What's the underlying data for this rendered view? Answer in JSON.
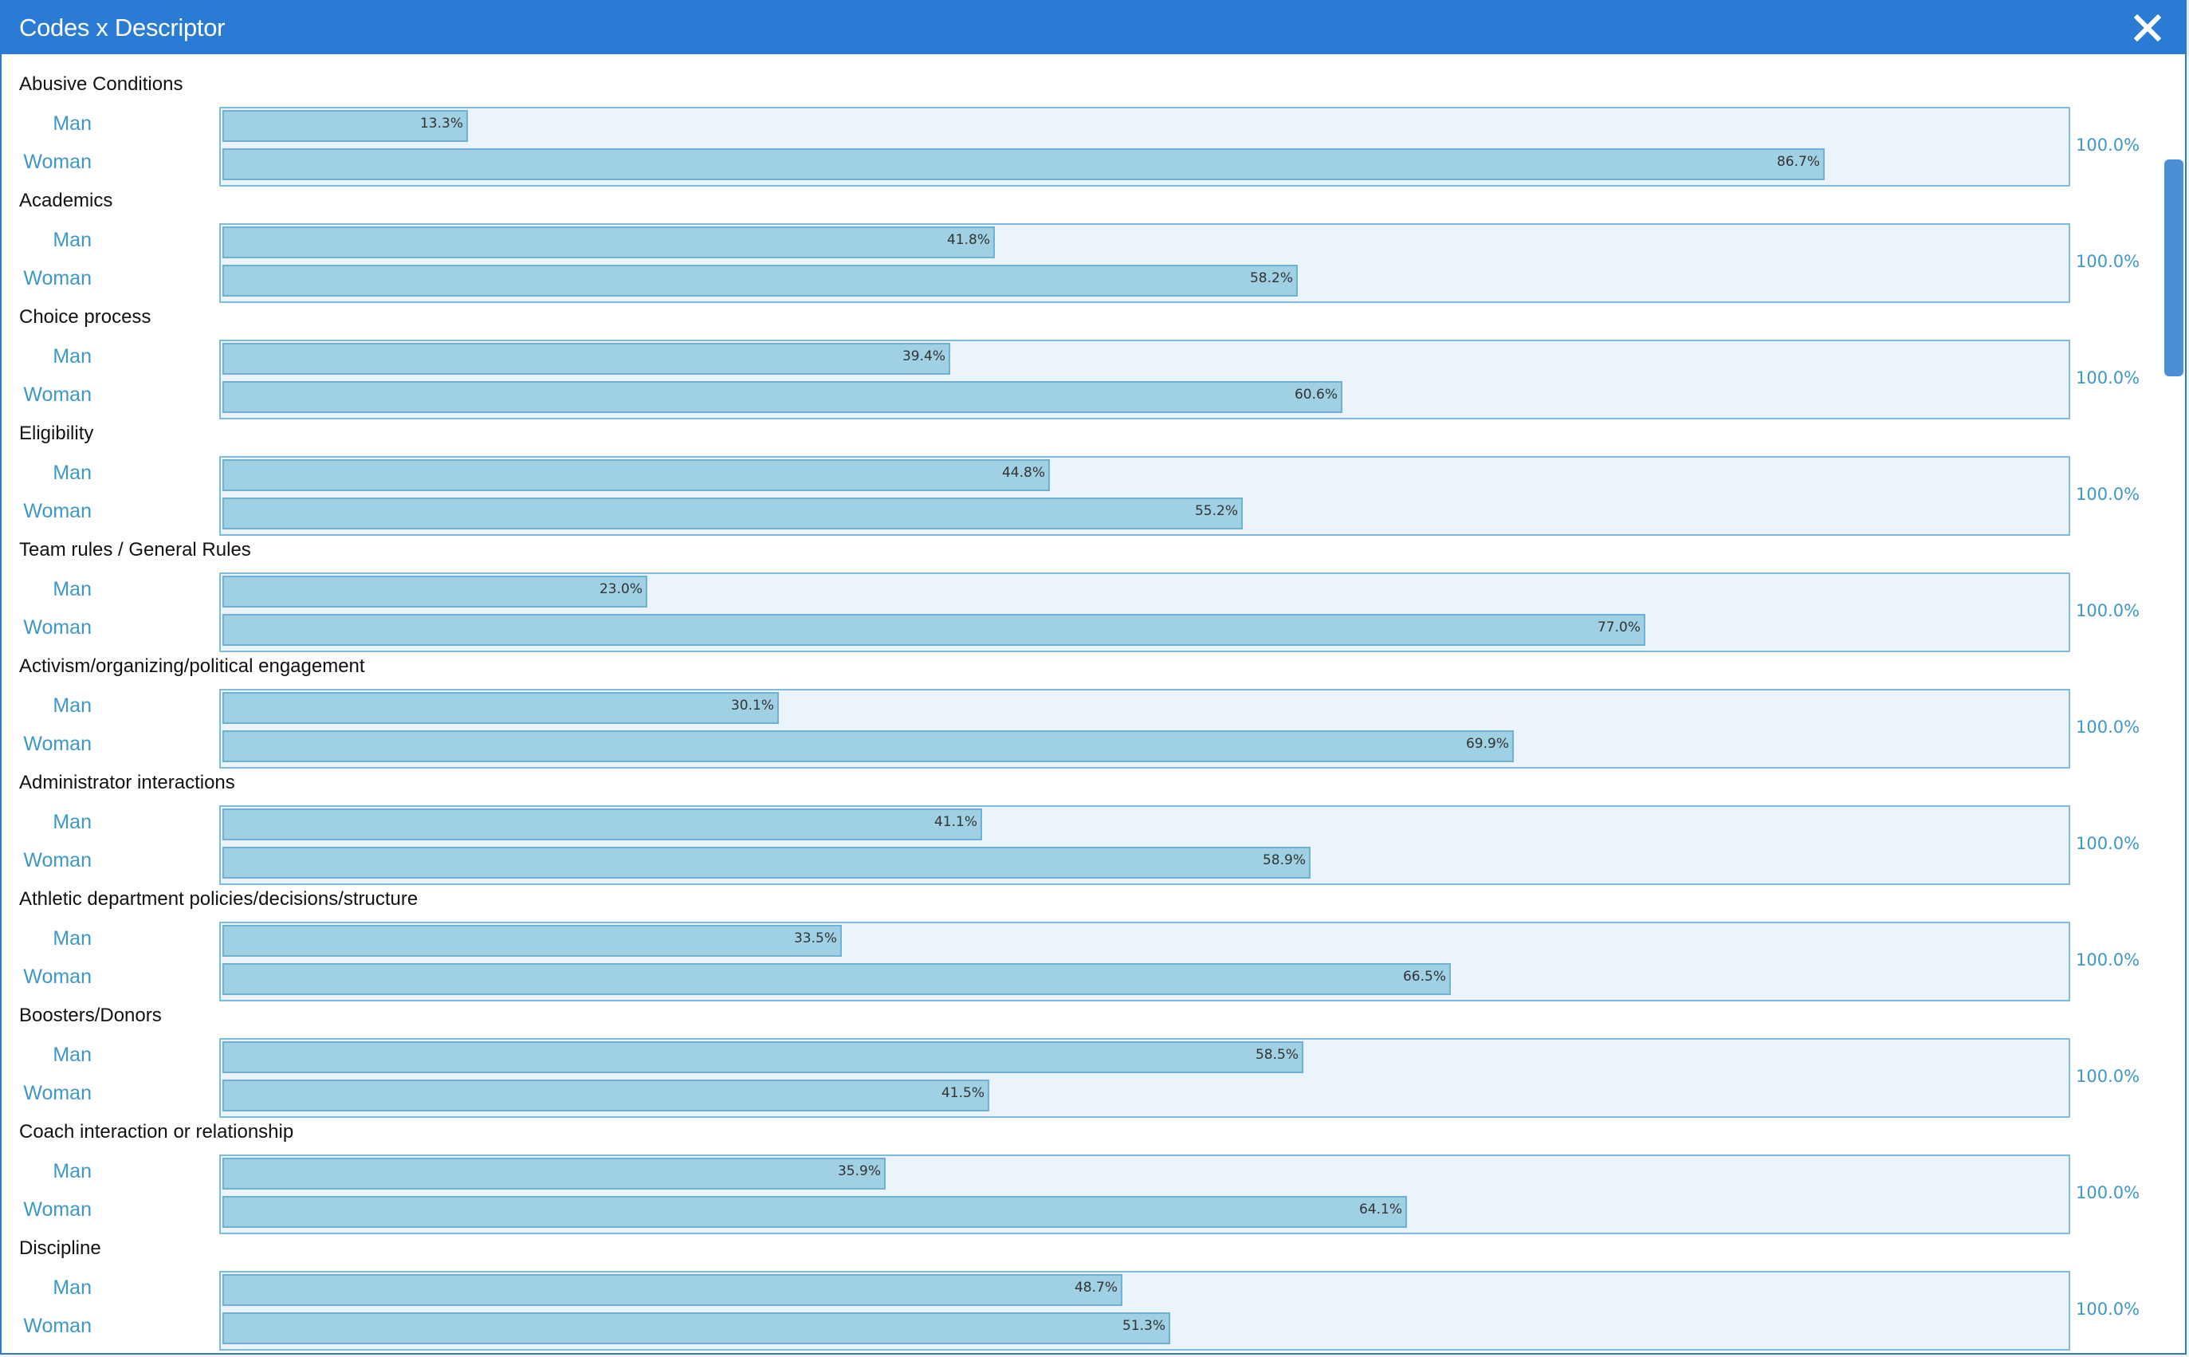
{
  "window": {
    "title": "Codes x Descriptor"
  },
  "series_labels": {
    "man": "Man",
    "woman": "Woman"
  },
  "colors": {
    "titlebar": "#2a7bd3",
    "bar_fill": "#9fd0e3",
    "bar_border": "#6fb1d3",
    "track": "#eaf4fa",
    "label_blue": "#3d98c9"
  },
  "icons": {
    "close": "close-icon"
  },
  "chart_data": {
    "type": "bar",
    "orientation": "horizontal",
    "title": "",
    "series": [
      {
        "name": "Man",
        "values": [
          13.3,
          41.8,
          39.4,
          44.8,
          23.0,
          30.1,
          41.1,
          33.5,
          58.5,
          35.9,
          48.7
        ]
      },
      {
        "name": "Woman",
        "values": [
          86.7,
          58.2,
          60.6,
          55.2,
          77.0,
          69.9,
          58.9,
          66.5,
          41.5,
          64.1,
          51.3
        ]
      }
    ],
    "xlim": [
      0,
      100
    ],
    "unit": "%",
    "groups": [
      {
        "category": "Abusive Conditions",
        "man": "13.3%",
        "woman": "86.7%",
        "total": "100.0%"
      },
      {
        "category": "Academics",
        "man": "41.8%",
        "woman": "58.2%",
        "total": "100.0%"
      },
      {
        "category": "Choice process",
        "man": "39.4%",
        "woman": "60.6%",
        "total": "100.0%"
      },
      {
        "category": "Eligibility",
        "man": "44.8%",
        "woman": "55.2%",
        "total": "100.0%"
      },
      {
        "category": "Team rules / General Rules",
        "man": "23.0%",
        "woman": "77.0%",
        "total": "100.0%"
      },
      {
        "category": "Activism/organizing/political engagement",
        "man": "30.1%",
        "woman": "69.9%",
        "total": "100.0%"
      },
      {
        "category": "Administrator interactions",
        "man": "41.1%",
        "woman": "58.9%",
        "total": "100.0%"
      },
      {
        "category": "Athletic department policies/decisions/structure",
        "man": "33.5%",
        "woman": "66.5%",
        "total": "100.0%"
      },
      {
        "category": "Boosters/Donors",
        "man": "58.5%",
        "woman": "41.5%",
        "total": "100.0%"
      },
      {
        "category": "Coach interaction or relationship",
        "man": "35.9%",
        "woman": "64.1%",
        "total": "100.0%"
      },
      {
        "category": "Discipline",
        "man": "48.7%",
        "woman": "51.3%",
        "total": "100.0%"
      }
    ]
  }
}
